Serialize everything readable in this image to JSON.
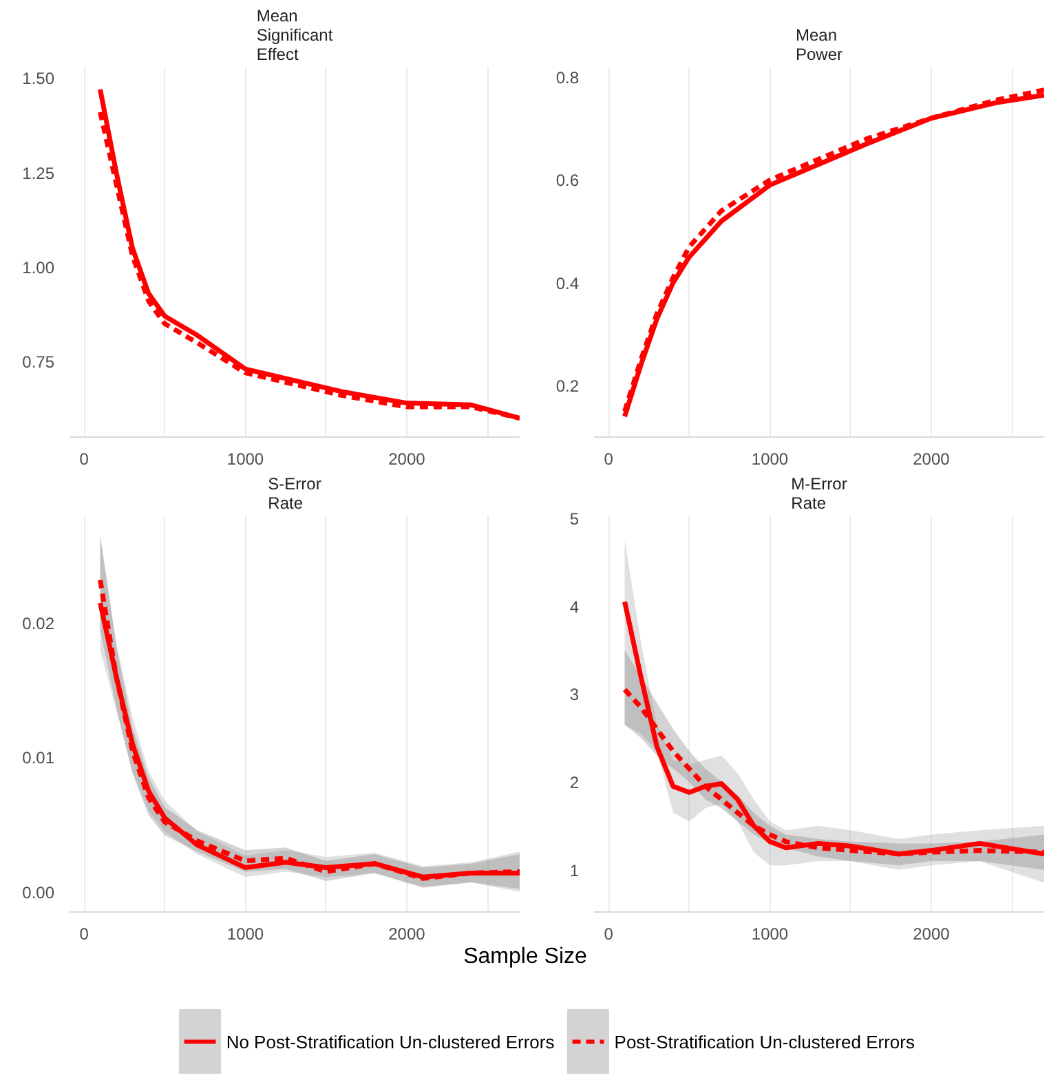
{
  "chart_data": [
    {
      "type": "line",
      "title": "Mean Significant Effect",
      "legend": "bottom",
      "grid": "x",
      "xlim": [
        -90,
        2700
      ],
      "xticks": [
        0,
        {
          "value": 500,
          "label": null
        },
        1000,
        {
          "value": 1500,
          "label": null
        },
        2000,
        {
          "value": 2500,
          "label": null
        }
      ],
      "ylim": [
        0.55,
        1.53
      ],
      "yticks": [
        {
          "value": 0.75,
          "label": "0.75"
        },
        {
          "value": 1.0,
          "label": "1.00"
        },
        {
          "value": 1.25,
          "label": "1.25"
        },
        {
          "value": 1.5,
          "label": "1.50"
        }
      ],
      "x": [
        100,
        200,
        300,
        400,
        500,
        700,
        1000,
        1300,
        1600,
        2000,
        2400,
        2700
      ],
      "series": [
        {
          "name": "No Post-Stratification Un-clustered Errors",
          "color": "#ff0000",
          "line_style": "solid",
          "values": [
            1.47,
            1.25,
            1.05,
            0.93,
            0.87,
            0.82,
            0.73,
            0.7,
            0.67,
            0.64,
            0.635,
            0.6
          ]
        },
        {
          "name": "Post-Stratification Un-clustered Errors",
          "color": "#ff0000",
          "line_style": "dashed",
          "values": [
            1.41,
            1.22,
            1.03,
            0.91,
            0.85,
            0.8,
            0.72,
            0.69,
            0.66,
            0.63,
            0.63,
            0.6
          ]
        }
      ]
    },
    {
      "type": "line",
      "title": "Mean Power",
      "grid": "x",
      "xlim": [
        -90,
        2700
      ],
      "xticks": [
        0,
        {
          "value": 500,
          "label": null
        },
        1000,
        {
          "value": 1500,
          "label": null
        },
        2000,
        {
          "value": 2500,
          "label": null
        }
      ],
      "ylim": [
        0.1,
        0.82
      ],
      "yticks": [
        0.2,
        0.4,
        0.6,
        0.8
      ],
      "x": [
        100,
        200,
        300,
        400,
        500,
        700,
        1000,
        1300,
        1600,
        2000,
        2400,
        2700
      ],
      "series": [
        {
          "color": "#ff0000",
          "line_style": "solid",
          "values": [
            0.14,
            0.24,
            0.33,
            0.4,
            0.45,
            0.52,
            0.59,
            0.63,
            0.67,
            0.72,
            0.75,
            0.765
          ]
        },
        {
          "color": "#ff0000",
          "line_style": "dashed",
          "values": [
            0.15,
            0.25,
            0.34,
            0.41,
            0.47,
            0.54,
            0.6,
            0.64,
            0.68,
            0.72,
            0.755,
            0.775
          ]
        }
      ]
    },
    {
      "type": "line",
      "title": "S-Error Rate",
      "xlabel": "Sample Size",
      "grid": "x",
      "xlim": [
        -90,
        2700
      ],
      "xticks": [
        0,
        {
          "value": 500,
          "label": null
        },
        1000,
        {
          "value": 1500,
          "label": null
        },
        2000,
        {
          "value": 2500,
          "label": null
        }
      ],
      "ylim": [
        -0.0015,
        0.028
      ],
      "yticks": [
        {
          "value": 0,
          "label": "0.00"
        },
        0.01,
        0.02
      ],
      "x": [
        100,
        200,
        300,
        400,
        500,
        700,
        1000,
        1250,
        1500,
        1800,
        2100,
        2400,
        2700
      ],
      "series": [
        {
          "color": "#ff0000",
          "line_style": "solid",
          "values": [
            0.0215,
            0.016,
            0.011,
            0.0075,
            0.0055,
            0.0035,
            0.0018,
            0.0022,
            0.0018,
            0.0021,
            0.0011,
            0.0014,
            0.0014
          ],
          "lower": [
            0.018,
            0.0135,
            0.009,
            0.006,
            0.0045,
            0.0028,
            0.0011,
            0.0015,
            0.0011,
            0.0014,
            0.0004,
            0.0007,
            0.0
          ],
          "upper": [
            0.0265,
            0.0185,
            0.013,
            0.009,
            0.0068,
            0.0045,
            0.0027,
            0.0031,
            0.0026,
            0.0029,
            0.0019,
            0.0022,
            0.003
          ]
        },
        {
          "color": "#ff0000",
          "line_style": "dashed",
          "values": [
            0.0232,
            0.016,
            0.0105,
            0.007,
            0.0052,
            0.0038,
            0.0023,
            0.0025,
            0.0015,
            0.0021,
            0.001,
            0.0014,
            0.0015
          ],
          "lower": [
            0.0195,
            0.0137,
            0.0088,
            0.0057,
            0.0042,
            0.003,
            0.0015,
            0.0017,
            0.0008,
            0.0014,
            0.0003,
            0.0007,
            0.0002
          ],
          "upper": [
            0.0265,
            0.0183,
            0.0122,
            0.0085,
            0.0063,
            0.0046,
            0.0031,
            0.0033,
            0.0023,
            0.0028,
            0.0018,
            0.0021,
            0.0028
          ]
        }
      ]
    },
    {
      "type": "line",
      "title": "M-Error Rate",
      "grid": "x",
      "xlim": [
        -90,
        2700
      ],
      "xticks": [
        0,
        {
          "value": 500,
          "label": null
        },
        1000,
        {
          "value": 1500,
          "label": null
        },
        2000,
        {
          "value": 2500,
          "label": null
        }
      ],
      "ylim": [
        0.52,
        5.03
      ],
      "yticks": [
        1,
        2,
        3,
        4,
        5
      ],
      "x": [
        100,
        200,
        300,
        400,
        500,
        600,
        700,
        800,
        900,
        1000,
        1100,
        1300,
        1500,
        1800,
        2000,
        2300,
        2700
      ],
      "series": [
        {
          "color": "#ff0000",
          "line_style": "solid",
          "values": [
            4.05,
            3.2,
            2.4,
            1.95,
            1.88,
            1.95,
            1.98,
            1.8,
            1.5,
            1.32,
            1.25,
            1.3,
            1.27,
            1.18,
            1.22,
            1.3,
            1.18
          ],
          "lower": [
            2.65,
            2.55,
            2.35,
            1.65,
            1.55,
            1.7,
            1.75,
            1.55,
            1.2,
            1.05,
            1.05,
            1.1,
            1.1,
            1.0,
            1.05,
            1.1,
            0.85
          ],
          "upper": [
            4.75,
            3.6,
            2.65,
            2.25,
            2.2,
            2.25,
            2.3,
            2.1,
            1.8,
            1.55,
            1.45,
            1.5,
            1.45,
            1.35,
            1.4,
            1.45,
            1.5
          ]
        },
        {
          "color": "#ff0000",
          "line_style": "dashed",
          "values": [
            3.05,
            2.85,
            2.6,
            2.35,
            2.15,
            1.95,
            1.8,
            1.65,
            1.5,
            1.4,
            1.32,
            1.25,
            1.22,
            1.18,
            1.2,
            1.22,
            1.2
          ],
          "lower": [
            2.65,
            2.5,
            2.3,
            2.15,
            2.0,
            1.8,
            1.7,
            1.55,
            1.4,
            1.3,
            1.25,
            1.15,
            1.1,
            1.05,
            1.1,
            1.1,
            1.0
          ],
          "upper": [
            3.5,
            3.2,
            2.9,
            2.6,
            2.35,
            2.15,
            2.0,
            1.85,
            1.65,
            1.5,
            1.4,
            1.35,
            1.32,
            1.3,
            1.3,
            1.32,
            1.4
          ]
        }
      ]
    }
  ]
}
